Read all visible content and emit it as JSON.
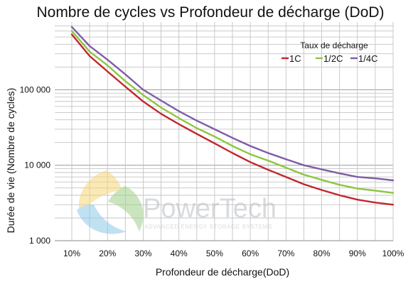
{
  "chart_data": {
    "type": "line",
    "title": "Nombre de cycles vs Profondeur de décharge (DoD)",
    "xlabel": "Profondeur de décharge(DoD)",
    "ylabel": "Durée de vie (Nombre de cycles)",
    "x_scale": "linear",
    "y_scale": "log",
    "xlim": [
      10,
      100
    ],
    "ylim": [
      1000,
      1000000
    ],
    "x_ticks": [
      10,
      20,
      30,
      40,
      50,
      60,
      70,
      80,
      90,
      100
    ],
    "x_tick_labels": [
      "10%",
      "20%",
      "30%",
      "40%",
      "50%",
      "60%",
      "70%",
      "80%",
      "90%",
      "100%"
    ],
    "y_ticks": [
      1000,
      10000,
      100000
    ],
    "y_tick_labels": [
      "1 000",
      "10 000",
      "100 000"
    ],
    "grid": "vertical every 5%, horizontal at log minor ticks",
    "legend_title": "Taux de décharge",
    "legend_position": "top-right",
    "series": [
      {
        "name": "1C",
        "color": "#c0272d",
        "x": [
          10,
          15,
          20,
          25,
          30,
          35,
          40,
          45,
          50,
          55,
          60,
          65,
          70,
          75,
          80,
          85,
          90,
          95,
          100
        ],
        "y": [
          540000,
          280000,
          175000,
          110000,
          70000,
          48000,
          35000,
          26000,
          19500,
          14500,
          11000,
          8700,
          7000,
          5600,
          4700,
          4000,
          3500,
          3200,
          3000
        ]
      },
      {
        "name": "1/2C",
        "color": "#8dc63f",
        "x": [
          10,
          15,
          20,
          25,
          30,
          35,
          40,
          45,
          50,
          55,
          60,
          65,
          70,
          75,
          80,
          85,
          90,
          95,
          100
        ],
        "y": [
          600000,
          320000,
          210000,
          130000,
          85000,
          58000,
          42000,
          31000,
          24000,
          18000,
          14000,
          11500,
          9300,
          7500,
          6400,
          5500,
          4900,
          4600,
          4300
        ]
      },
      {
        "name": "1/4C",
        "color": "#7f5ca8",
        "x": [
          10,
          15,
          20,
          25,
          30,
          35,
          40,
          45,
          50,
          55,
          60,
          65,
          70,
          75,
          80,
          85,
          90,
          95,
          100
        ],
        "y": [
          680000,
          380000,
          250000,
          160000,
          100000,
          72000,
          52000,
          39000,
          30000,
          23000,
          18000,
          14500,
          12000,
          10000,
          8800,
          7800,
          7000,
          6700,
          6300
        ]
      }
    ]
  },
  "watermark": {
    "brand": "PowerTech",
    "tagline": "ADVANCED ENERGY STORAGE SYSTEMS"
  }
}
